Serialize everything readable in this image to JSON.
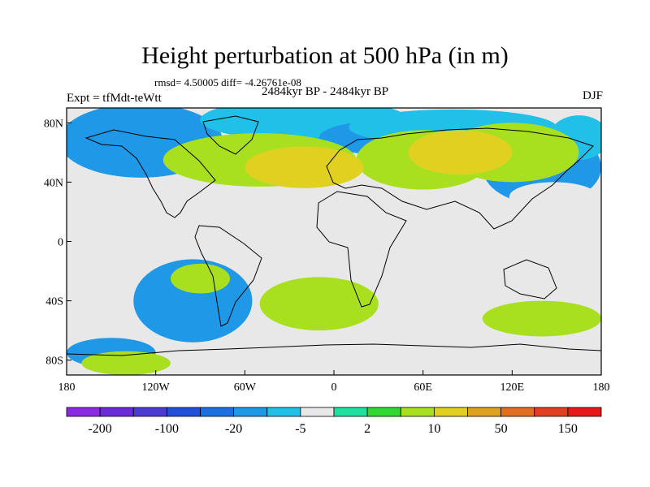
{
  "title": "Height perturbation at 500 hPa (in m)",
  "stats": "rmsd= 4.50005 diff= -4.26761e-08",
  "period": "2484kyr BP - 2484kyr BP",
  "experiment": "Expt = tfMdt-teWtt",
  "season": "DJF",
  "map": {
    "lon_range": [
      -180,
      180
    ],
    "lat_range": [
      -90,
      90
    ],
    "lon_ticks": [
      {
        "value": -180,
        "label": "180"
      },
      {
        "value": -120,
        "label": "120W"
      },
      {
        "value": -60,
        "label": "60W"
      },
      {
        "value": 0,
        "label": "0"
      },
      {
        "value": 60,
        "label": "60E"
      },
      {
        "value": 120,
        "label": "120E"
      },
      {
        "value": 180,
        "label": "180"
      }
    ],
    "lat_ticks": [
      {
        "value": 80,
        "label": "80N"
      },
      {
        "value": 40,
        "label": "40N"
      },
      {
        "value": 0,
        "label": "0"
      },
      {
        "value": -40,
        "label": "40S"
      },
      {
        "value": -80,
        "label": "80S"
      }
    ],
    "background_color": "#e8e8e8",
    "blobs": [
      {
        "lon": -130,
        "lat": 68,
        "rlon": 55,
        "rlat": 25,
        "level": 5
      },
      {
        "lon": -20,
        "lat": 82,
        "rlon": 70,
        "rlat": 14,
        "level": 6
      },
      {
        "lon": 40,
        "lat": 70,
        "rlon": 50,
        "rlat": 12,
        "level": 5
      },
      {
        "lon": 80,
        "lat": 77,
        "rlon": 70,
        "rlat": 12,
        "level": 6
      },
      {
        "lon": 140,
        "lat": 50,
        "rlon": 40,
        "rlat": 25,
        "level": 5
      },
      {
        "lon": 165,
        "lat": 70,
        "rlon": 20,
        "rlat": 15,
        "level": 6
      },
      {
        "lon": -40,
        "lat": 32,
        "rlon": 22,
        "rlat": 12,
        "level": 7
      },
      {
        "lon": -165,
        "lat": 22,
        "rlon": 15,
        "rlat": 12,
        "level": 7
      },
      {
        "lon": 10,
        "lat": 25,
        "rlon": 22,
        "rlat": 12,
        "level": 7
      },
      {
        "lon": 148,
        "lat": 30,
        "rlon": 30,
        "rlat": 10,
        "level": 7
      },
      {
        "lon": 45,
        "lat": -30,
        "rlon": 12,
        "rlat": 10,
        "level": 7
      },
      {
        "lon": -95,
        "lat": -40,
        "rlon": 40,
        "rlat": 28,
        "level": 5
      },
      {
        "lon": -150,
        "lat": -75,
        "rlon": 30,
        "rlat": 10,
        "level": 5
      },
      {
        "lon": 60,
        "lat": -50,
        "rlon": 40,
        "rlat": 18,
        "level": 7
      },
      {
        "lon": 160,
        "lat": -80,
        "rlon": 25,
        "rlat": 10,
        "level": 7
      },
      {
        "lon": -50,
        "lat": 55,
        "rlon": 65,
        "rlat": 18,
        "level": 10
      },
      {
        "lon": 60,
        "lat": 55,
        "rlon": 45,
        "rlat": 20,
        "level": 10
      },
      {
        "lon": 120,
        "lat": 60,
        "rlon": 45,
        "rlat": 20,
        "level": 10
      },
      {
        "lon": -90,
        "lat": -25,
        "rlon": 20,
        "rlat": 10,
        "level": 10
      },
      {
        "lon": 140,
        "lat": -52,
        "rlon": 40,
        "rlat": 12,
        "level": 10
      },
      {
        "lon": -10,
        "lat": -42,
        "rlon": 40,
        "rlat": 18,
        "level": 10
      },
      {
        "lon": -140,
        "lat": -82,
        "rlon": 30,
        "rlat": 8,
        "level": 10
      },
      {
        "lon": -20,
        "lat": 50,
        "rlon": 40,
        "rlat": 14,
        "level": 11
      },
      {
        "lon": 85,
        "lat": 60,
        "rlon": 35,
        "rlat": 15,
        "level": 11
      }
    ]
  },
  "colorbar": {
    "colors": [
      "#8a2be2",
      "#6a2cd6",
      "#4a3cd0",
      "#2050d8",
      "#1a70e0",
      "#2098e8",
      "#20c0e8",
      "#e8e8e8",
      "#20e0a0",
      "#30d830",
      "#a8e020",
      "#e0d020",
      "#e0a020",
      "#e07020",
      "#e04020",
      "#e81818"
    ],
    "labels": [
      {
        "after_box": 1,
        "text": "-200"
      },
      {
        "after_box": 3,
        "text": "-100"
      },
      {
        "after_box": 5,
        "text": "-20"
      },
      {
        "after_box": 7,
        "text": "-5"
      },
      {
        "after_box": 9,
        "text": "2"
      },
      {
        "after_box": 11,
        "text": "10"
      },
      {
        "after_box": 13,
        "text": "50"
      },
      {
        "after_box": 15,
        "text": "150"
      }
    ]
  }
}
